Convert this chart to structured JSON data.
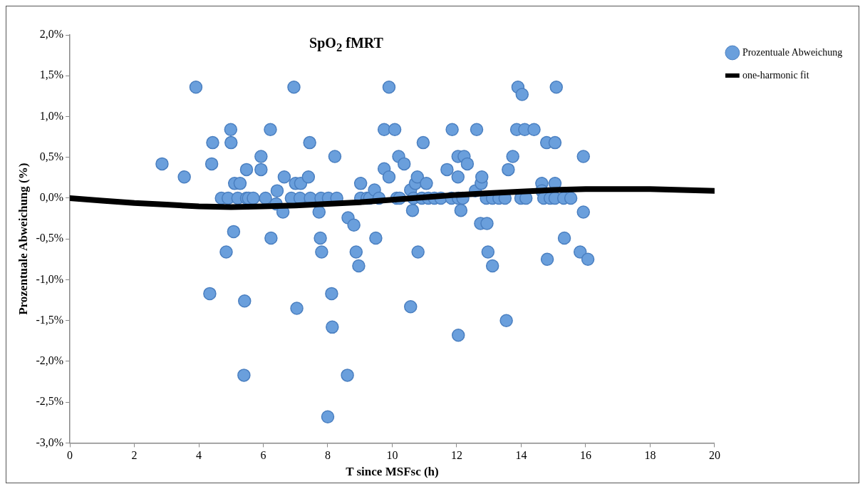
{
  "chart_data": {
    "type": "scatter",
    "title": "SpO$_{2}$ fMRT",
    "xlabel": "T since MSFsc (h)",
    "ylabel": "Prozentuale Abweichung (%)",
    "xlim": [
      0,
      20
    ],
    "xticks": [
      0,
      2,
      4,
      6,
      8,
      10,
      12,
      14,
      16,
      18,
      20
    ],
    "ylim": [
      -3,
      2
    ],
    "yticks": [
      {
        "value": -3,
        "label": "-3,0%"
      },
      {
        "value": -2.5,
        "label": "-2,5%"
      },
      {
        "value": -2,
        "label": "-2,0%"
      },
      {
        "value": -1.5,
        "label": "-1,5%"
      },
      {
        "value": -1,
        "label": "-1,0%"
      },
      {
        "value": -0.5,
        "label": "-0,5%"
      },
      {
        "value": 0,
        "label": "0,0%"
      },
      {
        "value": 0.5,
        "label": "0,5%"
      },
      {
        "value": 1,
        "label": "1,0%"
      },
      {
        "value": 1.5,
        "label": "1,5%"
      },
      {
        "value": 2,
        "label": "2,0%"
      }
    ],
    "grid": false,
    "legend": "top right",
    "marker": "circle",
    "series": [
      {
        "name": "Prozentuale Abweichung",
        "type": "scatter",
        "color": "#6a9fdc",
        "x": [
          2.86,
          3.55,
          3.91,
          4.4,
          4.43,
          4.34,
          4.7,
          4.85,
          4.91,
          4.99,
          5.0,
          5.08,
          5.11,
          5.28,
          5.21,
          5.42,
          5.4,
          5.48,
          5.48,
          5.54,
          5.69,
          5.93,
          5.93,
          6.07,
          6.22,
          6.24,
          6.43,
          6.4,
          6.61,
          6.65,
          6.87,
          6.95,
          7.04,
          7.0,
          7.14,
          7.16,
          7.4,
          7.44,
          7.46,
          7.73,
          7.77,
          7.81,
          7.79,
          8.0,
          8.02,
          8.12,
          8.14,
          8.22,
          8.28,
          8.61,
          8.63,
          8.81,
          8.88,
          8.96,
          9.02,
          9.02,
          9.22,
          9.3,
          9.45,
          9.49,
          9.59,
          9.75,
          9.75,
          9.9,
          9.9,
          10.08,
          10.14,
          10.2,
          10.23,
          10.37,
          10.57,
          10.57,
          10.63,
          10.66,
          10.72,
          10.78,
          10.8,
          10.92,
          10.96,
          11.06,
          11.12,
          11.31,
          11.51,
          11.7,
          11.84,
          11.86,
          12.04,
          12.04,
          12.05,
          12.05,
          12.13,
          12.19,
          12.23,
          12.33,
          12.58,
          12.62,
          12.74,
          12.76,
          12.78,
          12.92,
          12.94,
          12.97,
          13.11,
          13.11,
          13.31,
          13.5,
          13.54,
          13.6,
          13.74,
          13.86,
          13.9,
          13.99,
          14.03,
          14.11,
          14.15,
          14.4,
          14.64,
          14.64,
          14.7,
          14.79,
          14.81,
          14.9,
          15.05,
          15.05,
          15.05,
          15.09,
          15.32,
          15.34,
          15.54,
          15.83,
          15.93,
          15.93,
          16.07
        ],
        "values": [
          0.42,
          0.26,
          1.36,
          0.42,
          0.68,
          -1.17,
          0,
          -0.66,
          0,
          0.84,
          0.68,
          -0.41,
          0.18,
          0.18,
          0,
          -1.26,
          -2.17,
          0.35,
          0,
          0,
          0,
          0.51,
          0.35,
          0,
          0.84,
          -0.49,
          0.09,
          -0.07,
          -0.17,
          0.26,
          0,
          1.36,
          -1.35,
          0.18,
          0,
          0.18,
          0.26,
          0.68,
          0,
          -0.17,
          -0.49,
          -0.66,
          0,
          -2.68,
          0,
          -1.17,
          -1.58,
          0.51,
          0,
          -2.17,
          -0.24,
          -0.33,
          -0.66,
          -0.83,
          0.18,
          0,
          0,
          0,
          0.1,
          -0.49,
          0,
          0.84,
          0.36,
          1.36,
          0.26,
          0.84,
          0,
          0.51,
          0,
          0.42,
          0.1,
          -1.33,
          -0.15,
          0,
          0.18,
          0.26,
          -0.66,
          0,
          0.68,
          0.18,
          0,
          0,
          0,
          0.35,
          0,
          0.84,
          0.51,
          0.26,
          0,
          -1.68,
          -0.15,
          0,
          0.51,
          0.42,
          0.09,
          0.84,
          -0.31,
          0.18,
          0.26,
          0,
          -0.31,
          -0.66,
          -0.83,
          0,
          0,
          0,
          -1.5,
          0.35,
          0.51,
          0.84,
          1.36,
          0,
          1.27,
          0.84,
          0,
          0.84,
          0.18,
          0.09,
          0,
          0.68,
          -0.75,
          0,
          0.68,
          0,
          0.18,
          1.36,
          0,
          -0.49,
          0,
          -0.66,
          0.51,
          -0.17,
          -0.75
        ]
      },
      {
        "name": "one-harmonic fit",
        "type": "line",
        "color": "#000000",
        "marker": "none",
        "line_style": "solid",
        "x": [
          0,
          1,
          2,
          3,
          4,
          5,
          6,
          7,
          8,
          9,
          10,
          11,
          12,
          13,
          14,
          15,
          16,
          17,
          18,
          19,
          20
        ],
        "values": [
          0,
          -0.03,
          -0.06,
          -0.08,
          -0.1,
          -0.11,
          -0.1,
          -0.09,
          -0.07,
          -0.05,
          -0.02,
          0.01,
          0.04,
          0.06,
          0.08,
          0.1,
          0.11,
          0.11,
          0.11,
          0.1,
          0.09
        ]
      }
    ]
  }
}
